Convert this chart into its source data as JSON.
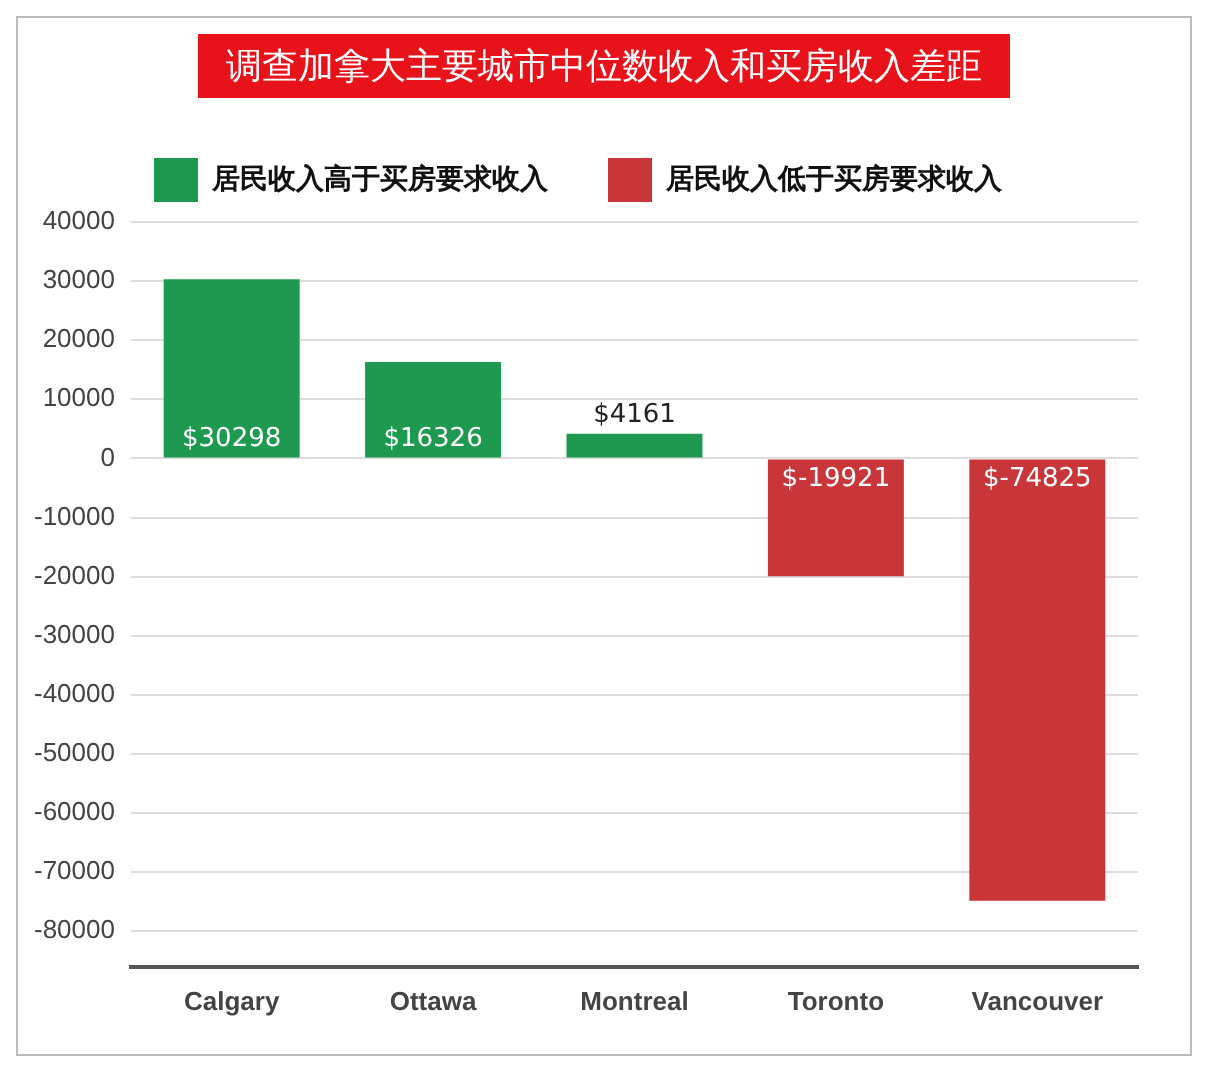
{
  "chart_data": {
    "type": "bar",
    "title": "调查加拿大主要城市中位数收入和买房收入差距",
    "categories": [
      "Calgary",
      "Ottawa",
      "Montreal",
      "Toronto",
      "Vancouver"
    ],
    "series": [
      {
        "name": "居民收入高于买房要求收入",
        "color": "#1e9a50",
        "values": [
          30298,
          16326,
          4161,
          null,
          null
        ],
        "value_labels": [
          "$30298",
          "$16326",
          "$4161",
          null,
          null
        ]
      },
      {
        "name": "居民收入低于买房要求收入",
        "color": "#c8363a",
        "values": [
          null,
          null,
          null,
          -19921,
          -74825
        ],
        "value_labels": [
          null,
          null,
          null,
          "$-19921",
          "$-74825"
        ]
      }
    ],
    "ylim": [
      -86000,
      40000
    ],
    "yticks": [
      -80000,
      -70000,
      -60000,
      -50000,
      -40000,
      -30000,
      -20000,
      -10000,
      0,
      10000,
      20000,
      30000,
      40000
    ],
    "grid": "y",
    "legend": "top"
  }
}
